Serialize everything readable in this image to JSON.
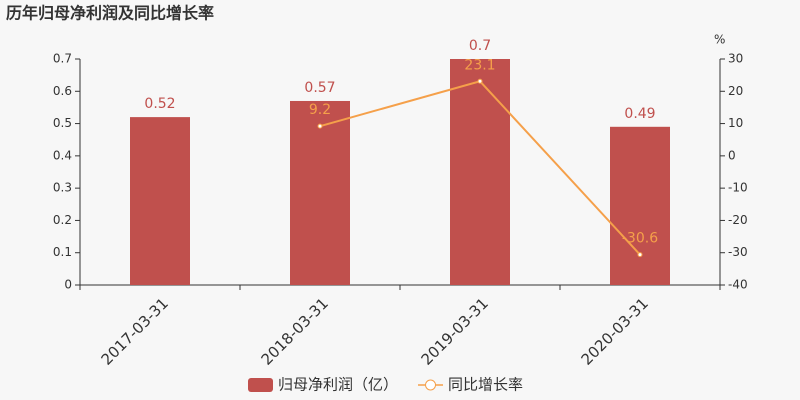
{
  "chart_data": {
    "type": "bar",
    "title": "历年归母净利润及同比增长率",
    "categories": [
      "2017-03-31",
      "2018-03-31",
      "2019-03-31",
      "2020-03-31"
    ],
    "series": [
      {
        "name": "归母净利润（亿）",
        "type": "bar",
        "color": "#c0504d",
        "values": [
          0.52,
          0.57,
          0.7,
          0.49
        ]
      },
      {
        "name": "同比增长率",
        "type": "line",
        "axis": "y2",
        "color": "#f5a04a",
        "values": [
          null,
          9.2,
          23.1,
          -30.6
        ]
      }
    ],
    "ylim": [
      0,
      0.7
    ],
    "yticks": [
      0,
      0.1,
      0.2,
      0.3,
      0.4,
      0.5,
      0.6,
      0.7
    ],
    "y2lim": [
      -40,
      30
    ],
    "y2ticks": [
      -40,
      -30,
      -20,
      -10,
      0,
      10,
      20,
      30
    ],
    "y2label": "%",
    "grid": false
  }
}
